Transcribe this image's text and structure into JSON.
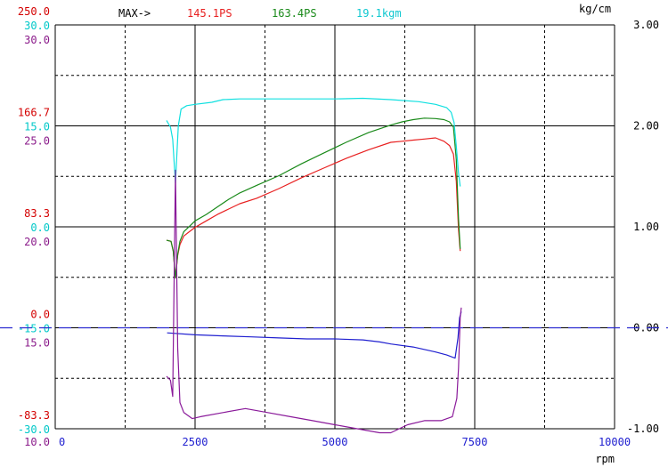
{
  "header": {
    "max_label": "MAX->",
    "max_power_red": "145.1PS",
    "max_power_green": "163.4PS",
    "max_torque": "19.1kgm",
    "unit_right": "kg/cm"
  },
  "chart_data": {
    "type": "line",
    "xlabel": "rpm",
    "x_ticks": [
      "0",
      "2500",
      "5000",
      "7500",
      "10000"
    ],
    "xlim": [
      0,
      10000
    ],
    "grid": true,
    "left_scales": [
      {
        "color": "#d40000",
        "labels": [
          "250.0",
          "166.7",
          "83.3",
          "0.0",
          "-83.3"
        ]
      },
      {
        "color": "#00c8c8",
        "labels": [
          "30.0",
          "15.0",
          "0.0",
          "-15.0",
          "-30.0"
        ]
      },
      {
        "color": "#8a1a8a",
        "labels": [
          "30.0",
          "25.0",
          "20.0",
          "15.0",
          "10.0"
        ]
      }
    ],
    "right_scale": {
      "color": "#000000",
      "labels": [
        "3.00",
        "2.00",
        "1.00",
        "0.00",
        "-1.00"
      ],
      "ylim": [
        -1.0,
        3.0
      ]
    },
    "colors": {
      "red": "#e82020",
      "green": "#1a8a1a",
      "cyan": "#10e0e0",
      "blue": "#2020d0",
      "purple": "#8a1a9a",
      "dash": "#2a2ad0"
    },
    "series": [
      {
        "name": "145.1PS",
        "color": "#e82020",
        "scale": "power",
        "ylim": [
          -125,
          250
        ],
        "x": [
          1990,
          2070,
          2110,
          2150,
          2190,
          2230,
          2300,
          2400,
          2500,
          2700,
          2900,
          3100,
          3300,
          3600,
          4000,
          4400,
          4800,
          5200,
          5600,
          6000,
          6200,
          6400,
          6600,
          6800,
          6950,
          7050,
          7120,
          7170,
          7210,
          7240
        ],
        "y": [
          50,
          49,
          40,
          15,
          36,
          46,
          54,
          58,
          62,
          68,
          74,
          79,
          84,
          89,
          98,
          108,
          117,
          126,
          134,
          141,
          142,
          143,
          144,
          145.1,
          142,
          138,
          130,
          105,
          60,
          40
        ]
      },
      {
        "name": "163.4PS",
        "color": "#1a8a1a",
        "scale": "power",
        "ylim": [
          -125,
          250
        ],
        "x": [
          1990,
          2070,
          2110,
          2150,
          2190,
          2230,
          2300,
          2400,
          2500,
          2700,
          2900,
          3100,
          3300,
          3600,
          4000,
          4400,
          4800,
          5200,
          5600,
          6000,
          6200,
          6400,
          6600,
          6800,
          6950,
          7050,
          7120,
          7170,
          7210,
          7240
        ],
        "y": [
          50,
          49,
          40,
          15,
          37,
          49,
          58,
          63,
          68,
          74,
          81,
          88,
          94,
          101,
          110,
          121,
          131,
          141,
          150,
          157,
          160,
          162,
          163.4,
          163,
          162,
          160,
          155,
          125,
          70,
          42
        ]
      },
      {
        "name": "19.1kgm",
        "color": "#10e0e0",
        "scale": "torque",
        "ylim": [
          -30,
          30
        ],
        "x": [
          1990,
          2060,
          2100,
          2130,
          2150,
          2170,
          2200,
          2250,
          2350,
          2500,
          2800,
          3000,
          3300,
          3600,
          4000,
          4500,
          5000,
          5500,
          6000,
          6500,
          6800,
          7000,
          7080,
          7130,
          7170,
          7210,
          7240
        ],
        "y": [
          15.8,
          14.8,
          13,
          9,
          6.5,
          10,
          15,
          17.5,
          18,
          18.2,
          18.5,
          18.9,
          19.0,
          19.0,
          19.0,
          19.0,
          19.0,
          19.1,
          18.9,
          18.6,
          18.2,
          17.7,
          17.0,
          15.5,
          12,
          8,
          6
        ]
      },
      {
        "name": "",
        "color": "#2020d0",
        "scale": "right",
        "ylim": [
          -1.0,
          3.0
        ],
        "x": [
          2000,
          2500,
          3000,
          3500,
          4000,
          4500,
          5000,
          5500,
          5800,
          6000,
          6400,
          6800,
          7000,
          7150,
          7200,
          7230,
          7260
        ],
        "y": [
          -0.05,
          -0.07,
          -0.08,
          -0.09,
          -0.1,
          -0.11,
          -0.11,
          -0.12,
          -0.14,
          -0.16,
          -0.19,
          -0.24,
          -0.27,
          -0.3,
          -0.1,
          0.1,
          0.16
        ]
      },
      {
        "name": "",
        "color": "#8a1a9a",
        "scale": "purple",
        "ylim": [
          10,
          30
        ],
        "x": [
          1990,
          2060,
          2100,
          2150,
          2190,
          2230,
          2300,
          2450,
          2600,
          3000,
          3400,
          3800,
          4200,
          4600,
          5000,
          5400,
          5800,
          6000,
          6300,
          6600,
          6900,
          7100,
          7180,
          7210,
          7240,
          7260
        ],
        "y": [
          12.6,
          12.4,
          11.6,
          22.8,
          14,
          11.3,
          10.8,
          10.5,
          10.6,
          10.8,
          11,
          10.8,
          10.6,
          10.4,
          10.2,
          10,
          9.8,
          9.8,
          10.2,
          10.4,
          10.4,
          10.6,
          11.5,
          13,
          15.5,
          16
        ]
      }
    ],
    "dashed_line": {
      "name": "",
      "scale": "right",
      "y": 0.0
    }
  }
}
